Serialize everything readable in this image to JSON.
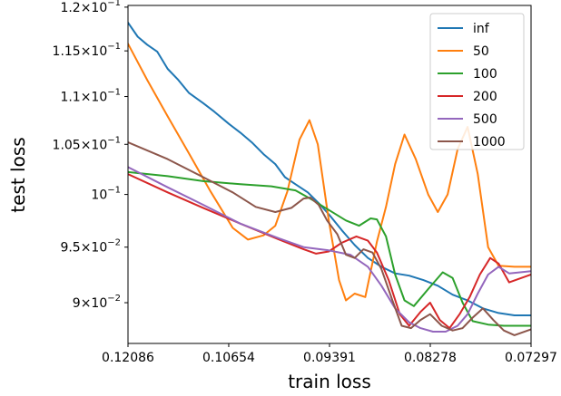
{
  "chart_data": {
    "type": "line",
    "xlabel": "train loss",
    "ylabel": "test loss",
    "x_scale": "log-reversed",
    "y_scale": "log",
    "xlim": [
      0.12086,
      0.07297
    ],
    "ylim": [
      0.0865,
      0.1202
    ],
    "x_ticks": [
      {
        "value": 0.12086,
        "label": "0.12086"
      },
      {
        "value": 0.10654,
        "label": "0.10654"
      },
      {
        "value": 0.09391,
        "label": "0.09391"
      },
      {
        "value": 0.08278,
        "label": "0.08278"
      },
      {
        "value": 0.07297,
        "label": "0.07297"
      }
    ],
    "y_ticks": [
      {
        "value": 0.12,
        "mant": "1.2",
        "times": "×",
        "base": "10",
        "exp": "−1"
      },
      {
        "value": 0.115,
        "mant": "1.15",
        "times": "×",
        "base": "10",
        "exp": "−1"
      },
      {
        "value": 0.11,
        "mant": "1.1",
        "times": "×",
        "base": "10",
        "exp": "−1"
      },
      {
        "value": 0.105,
        "mant": "1.05",
        "times": "×",
        "base": "10",
        "exp": "−1"
      },
      {
        "value": 0.1,
        "mant": "",
        "times": "",
        "base": "10",
        "exp": "−1"
      },
      {
        "value": 0.095,
        "mant": "9.5",
        "times": "×",
        "base": "10",
        "exp": "−2"
      },
      {
        "value": 0.09,
        "mant": "9",
        "times": "×",
        "base": "10",
        "exp": "−2"
      }
    ],
    "legend_position": "top-right",
    "series": [
      {
        "name": "inf",
        "color": "#1f77b4",
        "points": [
          [
            0.12086,
            0.1182
          ],
          [
            0.1194,
            0.1166
          ],
          [
            0.118,
            0.1157
          ],
          [
            0.1165,
            0.1149
          ],
          [
            0.115,
            0.113
          ],
          [
            0.1135,
            0.1118
          ],
          [
            0.112,
            0.1104
          ],
          [
            0.11,
            0.1093
          ],
          [
            0.1085,
            0.1084
          ],
          [
            0.1065,
            0.1071
          ],
          [
            0.105,
            0.1062
          ],
          [
            0.1035,
            0.1052
          ],
          [
            0.102,
            0.104
          ],
          [
            0.1005,
            0.103
          ],
          [
            0.0993,
            0.1017
          ],
          [
            0.098,
            0.101
          ],
          [
            0.0965,
            0.1002
          ],
          [
            0.095,
            0.099
          ],
          [
            0.0939,
            0.098
          ],
          [
            0.0925,
            0.0966
          ],
          [
            0.091,
            0.0952
          ],
          [
            0.0895,
            0.094
          ],
          [
            0.088,
            0.0932
          ],
          [
            0.0865,
            0.0926
          ],
          [
            0.085,
            0.0924
          ],
          [
            0.0835,
            0.092
          ],
          [
            0.082,
            0.0915
          ],
          [
            0.0805,
            0.0907
          ],
          [
            0.079,
            0.0902
          ],
          [
            0.0775,
            0.0895
          ],
          [
            0.076,
            0.0891
          ],
          [
            0.0745,
            0.0889
          ],
          [
            0.07297,
            0.0889
          ]
        ]
      },
      {
        "name": "50",
        "color": "#ff7f0e",
        "points": [
          [
            0.12086,
            0.1158
          ],
          [
            0.118,
            0.1118
          ],
          [
            0.115,
            0.1079
          ],
          [
            0.112,
            0.1041
          ],
          [
            0.109,
            0.1003
          ],
          [
            0.106,
            0.0968
          ],
          [
            0.104,
            0.0957
          ],
          [
            0.102,
            0.0961
          ],
          [
            0.1005,
            0.097
          ],
          [
            0.099,
            0.1003
          ],
          [
            0.0975,
            0.1055
          ],
          [
            0.0963,
            0.1075
          ],
          [
            0.0953,
            0.105
          ],
          [
            0.094,
            0.0975
          ],
          [
            0.0928,
            0.092
          ],
          [
            0.092,
            0.0902
          ],
          [
            0.091,
            0.0908
          ],
          [
            0.0898,
            0.0905
          ],
          [
            0.0885,
            0.0955
          ],
          [
            0.0875,
            0.0988
          ],
          [
            0.0865,
            0.103
          ],
          [
            0.0855,
            0.106
          ],
          [
            0.0843,
            0.1035
          ],
          [
            0.083,
            0.1
          ],
          [
            0.082,
            0.0983
          ],
          [
            0.081,
            0.1
          ],
          [
            0.08,
            0.1045
          ],
          [
            0.079,
            0.1068
          ],
          [
            0.078,
            0.102
          ],
          [
            0.077,
            0.095
          ],
          [
            0.076,
            0.0933
          ],
          [
            0.0745,
            0.0932
          ],
          [
            0.07297,
            0.0932
          ]
        ]
      },
      {
        "name": "100",
        "color": "#2ca02c",
        "points": [
          [
            0.12086,
            0.1022
          ],
          [
            0.115,
            0.1018
          ],
          [
            0.11,
            0.1013
          ],
          [
            0.105,
            0.101
          ],
          [
            0.101,
            0.1008
          ],
          [
            0.098,
            0.1004
          ],
          [
            0.096,
            0.0995
          ],
          [
            0.094,
            0.0985
          ],
          [
            0.092,
            0.0975
          ],
          [
            0.0905,
            0.097
          ],
          [
            0.0892,
            0.0977
          ],
          [
            0.0885,
            0.0976
          ],
          [
            0.0875,
            0.096
          ],
          [
            0.0865,
            0.0925
          ],
          [
            0.0855,
            0.0902
          ],
          [
            0.0845,
            0.0897
          ],
          [
            0.083,
            0.0912
          ],
          [
            0.0815,
            0.0927
          ],
          [
            0.0805,
            0.0922
          ],
          [
            0.0795,
            0.09
          ],
          [
            0.0785,
            0.0884
          ],
          [
            0.077,
            0.0881
          ],
          [
            0.0755,
            0.088
          ],
          [
            0.07297,
            0.088
          ]
        ]
      },
      {
        "name": "200",
        "color": "#d62728",
        "points": [
          [
            0.12086,
            0.102
          ],
          [
            0.115,
            0.1002
          ],
          [
            0.11,
            0.0987
          ],
          [
            0.105,
            0.0972
          ],
          [
            0.1,
            0.0957
          ],
          [
            0.097,
            0.0948
          ],
          [
            0.0955,
            0.0944
          ],
          [
            0.094,
            0.0946
          ],
          [
            0.0925,
            0.0954
          ],
          [
            0.0908,
            0.096
          ],
          [
            0.0895,
            0.0956
          ],
          [
            0.0885,
            0.0945
          ],
          [
            0.0872,
            0.092
          ],
          [
            0.086,
            0.089
          ],
          [
            0.085,
            0.088
          ],
          [
            0.0838,
            0.0892
          ],
          [
            0.0828,
            0.09
          ],
          [
            0.0818,
            0.0885
          ],
          [
            0.0808,
            0.0878
          ],
          [
            0.0798,
            0.089
          ],
          [
            0.0788,
            0.0905
          ],
          [
            0.0778,
            0.0925
          ],
          [
            0.0768,
            0.094
          ],
          [
            0.076,
            0.0935
          ],
          [
            0.075,
            0.0918
          ],
          [
            0.07297,
            0.0925
          ]
        ]
      },
      {
        "name": "500",
        "color": "#9467bd",
        "points": [
          [
            0.12086,
            0.1027
          ],
          [
            0.115,
            0.1007
          ],
          [
            0.11,
            0.099
          ],
          [
            0.105,
            0.0972
          ],
          [
            0.1,
            0.0958
          ],
          [
            0.097,
            0.095
          ],
          [
            0.094,
            0.0947
          ],
          [
            0.0915,
            0.0943
          ],
          [
            0.0895,
            0.0932
          ],
          [
            0.088,
            0.0915
          ],
          [
            0.0865,
            0.0895
          ],
          [
            0.085,
            0.0883
          ],
          [
            0.0838,
            0.0878
          ],
          [
            0.0825,
            0.0875
          ],
          [
            0.0812,
            0.0875
          ],
          [
            0.08,
            0.088
          ],
          [
            0.079,
            0.089
          ],
          [
            0.078,
            0.0908
          ],
          [
            0.077,
            0.0925
          ],
          [
            0.076,
            0.0932
          ],
          [
            0.075,
            0.0926
          ],
          [
            0.07297,
            0.0928
          ]
        ]
      },
      {
        "name": "1000",
        "color": "#8c564b",
        "points": [
          [
            0.12086,
            0.1052
          ],
          [
            0.115,
            0.1035
          ],
          [
            0.11,
            0.1017
          ],
          [
            0.106,
            0.1002
          ],
          [
            0.103,
            0.0988
          ],
          [
            0.1005,
            0.0983
          ],
          [
            0.0985,
            0.0987
          ],
          [
            0.097,
            0.0996
          ],
          [
            0.0962,
            0.0997
          ],
          [
            0.0952,
            0.099
          ],
          [
            0.0942,
            0.0975
          ],
          [
            0.093,
            0.0962
          ],
          [
            0.092,
            0.0943
          ],
          [
            0.091,
            0.094
          ],
          [
            0.09,
            0.0948
          ],
          [
            0.089,
            0.0945
          ],
          [
            0.088,
            0.093
          ],
          [
            0.0868,
            0.0902
          ],
          [
            0.0858,
            0.088
          ],
          [
            0.0848,
            0.0878
          ],
          [
            0.0838,
            0.0885
          ],
          [
            0.0828,
            0.089
          ],
          [
            0.0816,
            0.088
          ],
          [
            0.0805,
            0.0876
          ],
          [
            0.0795,
            0.0878
          ],
          [
            0.0785,
            0.0887
          ],
          [
            0.0775,
            0.0895
          ],
          [
            0.0765,
            0.0885
          ],
          [
            0.0755,
            0.0876
          ],
          [
            0.0745,
            0.0872
          ],
          [
            0.07297,
            0.0877
          ]
        ]
      }
    ]
  }
}
